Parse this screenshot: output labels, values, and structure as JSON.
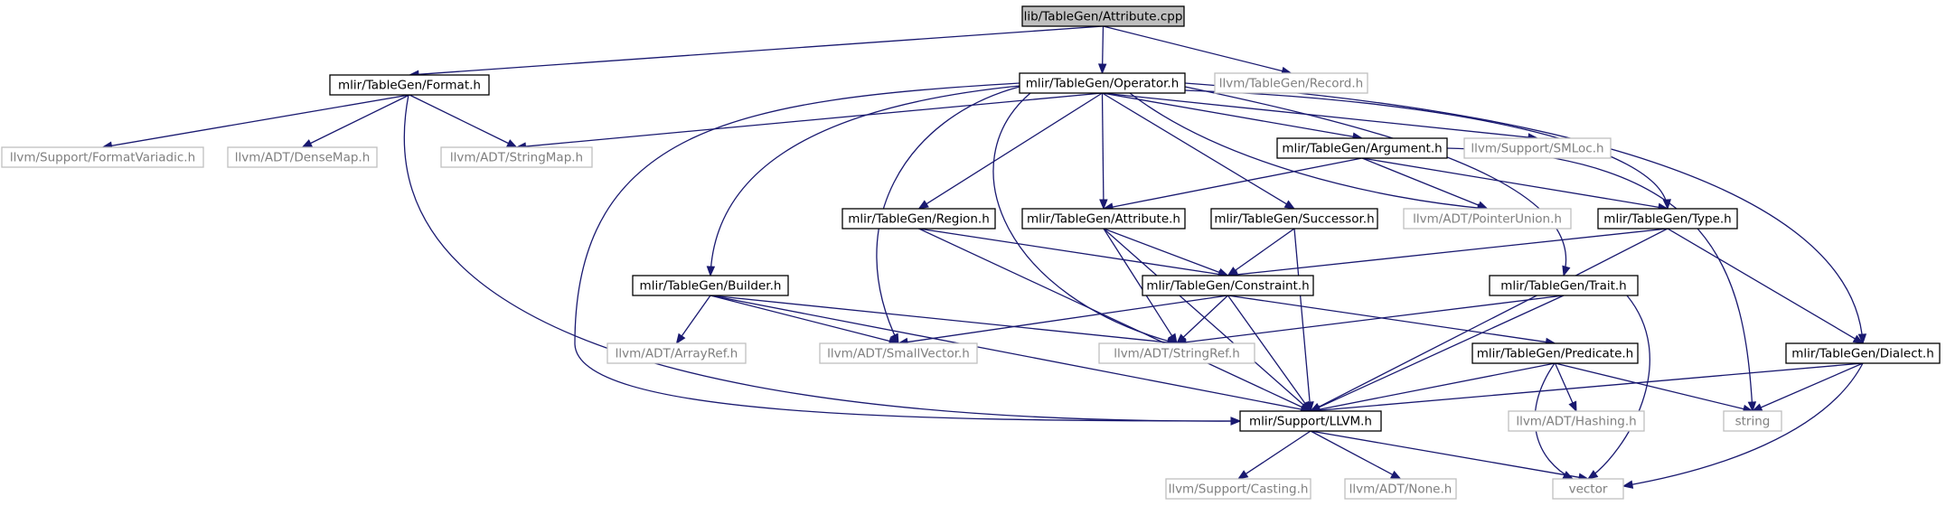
{
  "colors": {
    "edge": "#191970",
    "root_fill": "#bfbfbf",
    "node_border": "#000000",
    "external_border": "#bfbfbf",
    "external_text": "#7f7f7f",
    "node_text": "#000000"
  },
  "nodes": [
    {
      "id": "root",
      "label": "lib/TableGen/Attribute.cpp",
      "kind": "root"
    },
    {
      "id": "format",
      "label": "mlir/TableGen/Format.h",
      "kind": "internal"
    },
    {
      "id": "operator",
      "label": "mlir/TableGen/Operator.h",
      "kind": "internal"
    },
    {
      "id": "record",
      "label": "llvm/TableGen/Record.h",
      "kind": "external"
    },
    {
      "id": "formatvariadic",
      "label": "llvm/Support/FormatVariadic.h",
      "kind": "external"
    },
    {
      "id": "densemap",
      "label": "llvm/ADT/DenseMap.h",
      "kind": "external"
    },
    {
      "id": "stringmap",
      "label": "llvm/ADT/StringMap.h",
      "kind": "external"
    },
    {
      "id": "argument",
      "label": "mlir/TableGen/Argument.h",
      "kind": "internal"
    },
    {
      "id": "smloc",
      "label": "llvm/Support/SMLoc.h",
      "kind": "external"
    },
    {
      "id": "region",
      "label": "mlir/TableGen/Region.h",
      "kind": "internal"
    },
    {
      "id": "attributeh",
      "label": "mlir/TableGen/Attribute.h",
      "kind": "internal"
    },
    {
      "id": "successor",
      "label": "mlir/TableGen/Successor.h",
      "kind": "internal"
    },
    {
      "id": "pointerunion",
      "label": "llvm/ADT/PointerUnion.h",
      "kind": "external"
    },
    {
      "id": "type",
      "label": "mlir/TableGen/Type.h",
      "kind": "internal"
    },
    {
      "id": "builder",
      "label": "mlir/TableGen/Builder.h",
      "kind": "internal"
    },
    {
      "id": "constraint",
      "label": "mlir/TableGen/Constraint.h",
      "kind": "internal"
    },
    {
      "id": "trait",
      "label": "mlir/TableGen/Trait.h",
      "kind": "internal"
    },
    {
      "id": "arrayref",
      "label": "llvm/ADT/ArrayRef.h",
      "kind": "external"
    },
    {
      "id": "smallvector",
      "label": "llvm/ADT/SmallVector.h",
      "kind": "external"
    },
    {
      "id": "stringref",
      "label": "llvm/ADT/StringRef.h",
      "kind": "external"
    },
    {
      "id": "predicate",
      "label": "mlir/TableGen/Predicate.h",
      "kind": "internal"
    },
    {
      "id": "dialect",
      "label": "mlir/TableGen/Dialect.h",
      "kind": "internal"
    },
    {
      "id": "llvmh",
      "label": "mlir/Support/LLVM.h",
      "kind": "internal"
    },
    {
      "id": "hashing",
      "label": "llvm/ADT/Hashing.h",
      "kind": "external"
    },
    {
      "id": "string",
      "label": "string",
      "kind": "external"
    },
    {
      "id": "casting",
      "label": "llvm/Support/Casting.h",
      "kind": "external"
    },
    {
      "id": "none",
      "label": "llvm/ADT/None.h",
      "kind": "external"
    },
    {
      "id": "vector",
      "label": "vector",
      "kind": "external"
    }
  ],
  "edges": [
    [
      "root",
      "format"
    ],
    [
      "root",
      "operator"
    ],
    [
      "root",
      "record"
    ],
    [
      "format",
      "formatvariadic"
    ],
    [
      "format",
      "densemap"
    ],
    [
      "format",
      "stringmap"
    ],
    [
      "format",
      "llvmh"
    ],
    [
      "operator",
      "stringmap"
    ],
    [
      "operator",
      "argument"
    ],
    [
      "operator",
      "smloc"
    ],
    [
      "operator",
      "region"
    ],
    [
      "operator",
      "attributeh"
    ],
    [
      "operator",
      "successor"
    ],
    [
      "operator",
      "pointerunion"
    ],
    [
      "operator",
      "type"
    ],
    [
      "operator",
      "builder"
    ],
    [
      "operator",
      "smallvector"
    ],
    [
      "operator",
      "stringref"
    ],
    [
      "operator",
      "trait"
    ],
    [
      "operator",
      "dialect"
    ],
    [
      "operator",
      "llvmh"
    ],
    [
      "argument",
      "attributeh"
    ],
    [
      "argument",
      "pointerunion"
    ],
    [
      "argument",
      "type"
    ],
    [
      "argument",
      "string"
    ],
    [
      "region",
      "constraint"
    ],
    [
      "region",
      "llvmh"
    ],
    [
      "attributeh",
      "constraint"
    ],
    [
      "attributeh",
      "stringref"
    ],
    [
      "attributeh",
      "llvmh"
    ],
    [
      "successor",
      "constraint"
    ],
    [
      "successor",
      "llvmh"
    ],
    [
      "type",
      "constraint"
    ],
    [
      "type",
      "dialect"
    ],
    [
      "type",
      "llvmh"
    ],
    [
      "builder",
      "arrayref"
    ],
    [
      "builder",
      "smallvector"
    ],
    [
      "builder",
      "stringref"
    ],
    [
      "builder",
      "llvmh"
    ],
    [
      "constraint",
      "smallvector"
    ],
    [
      "constraint",
      "stringref"
    ],
    [
      "constraint",
      "predicate"
    ],
    [
      "constraint",
      "llvmh"
    ],
    [
      "trait",
      "stringref"
    ],
    [
      "trait",
      "llvmh"
    ],
    [
      "trait",
      "vector"
    ],
    [
      "predicate",
      "llvmh"
    ],
    [
      "predicate",
      "hashing"
    ],
    [
      "predicate",
      "string"
    ],
    [
      "predicate",
      "vector"
    ],
    [
      "dialect",
      "llvmh"
    ],
    [
      "dialect",
      "string"
    ],
    [
      "dialect",
      "vector"
    ],
    [
      "llvmh",
      "casting"
    ],
    [
      "llvmh",
      "none"
    ],
    [
      "llvmh",
      "vector"
    ]
  ]
}
